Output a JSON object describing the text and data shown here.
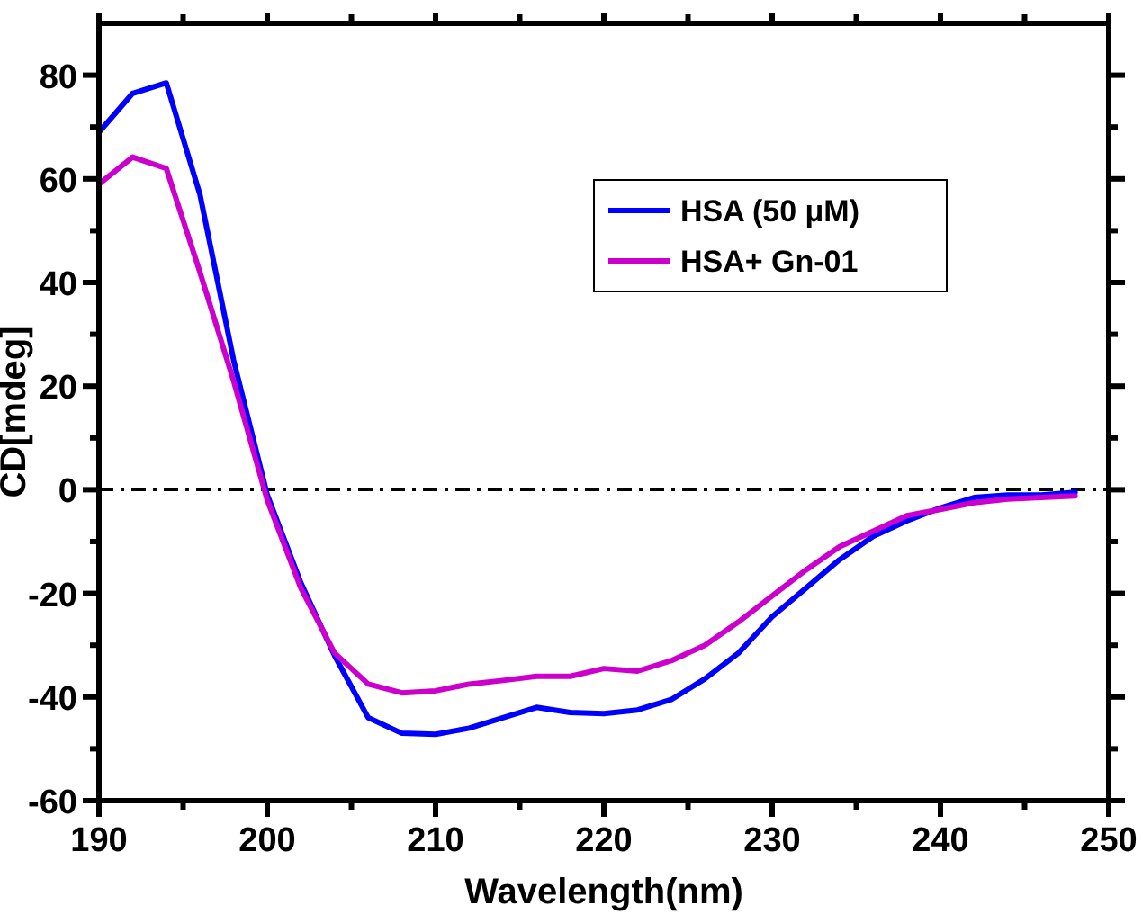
{
  "chart_data": {
    "type": "line",
    "xlabel": "Wavelength(nm)",
    "ylabel": "CD[mdeg]",
    "x": [
      190,
      192,
      194,
      196,
      198,
      200,
      202,
      204,
      206,
      208,
      210,
      212,
      214,
      216,
      218,
      220,
      222,
      224,
      226,
      228,
      230,
      232,
      234,
      236,
      238,
      240,
      242,
      244,
      246,
      248
    ],
    "series": [
      {
        "name": "HSA (50 μM)",
        "color": "#0000ff",
        "values": [
          69,
          76.5,
          78.5,
          57,
          25,
          -1,
          -18,
          -32,
          -44,
          -47,
          -47.2,
          -46,
          -44,
          -42,
          -43,
          -43.2,
          -42.5,
          -40.5,
          -36.5,
          -31.5,
          -24.5,
          -19,
          -13.5,
          -9,
          -6,
          -3.5,
          -1.5,
          -1,
          -1,
          -0.5
        ]
      },
      {
        "name": "HSA+ Gn-01",
        "color": "#cc00cc",
        "values": [
          59,
          64.2,
          62,
          42,
          21,
          -2,
          -19,
          -31.5,
          -37.5,
          -39.2,
          -38.8,
          -37.5,
          -36.8,
          -36,
          -36,
          -34.5,
          -35,
          -33,
          -30,
          -25.5,
          -20.5,
          -15.5,
          -11,
          -8,
          -5,
          -3.8,
          -2.5,
          -1.8,
          -1.5,
          -1.2
        ]
      }
    ],
    "xlim": [
      190,
      250
    ],
    "xticks": [
      190,
      {
        "value": 195,
        "label": null
      },
      200,
      {
        "value": 205,
        "label": null
      },
      210,
      {
        "value": 215,
        "label": null
      },
      220,
      {
        "value": 225,
        "label": null
      },
      230,
      {
        "value": 235,
        "label": null
      },
      240,
      {
        "value": 245,
        "label": null
      },
      250
    ],
    "ylim": [
      -60,
      90
    ],
    "yticks": [
      -60,
      {
        "value": -50,
        "label": null
      },
      -40,
      {
        "value": -30,
        "label": null
      },
      -20,
      {
        "value": -10,
        "label": null
      },
      0,
      {
        "value": 10,
        "label": null
      },
      20,
      {
        "value": 30,
        "label": null
      },
      40,
      {
        "value": 50,
        "label": null
      },
      60,
      {
        "value": 70,
        "label": null
      },
      80
    ],
    "ref_lines": [
      {
        "axis": "y",
        "value": 0,
        "color": "#000000",
        "line_style": "dashdot"
      }
    ],
    "legend": "top right",
    "grid": false,
    "marker": "none",
    "line_style": "solid"
  }
}
